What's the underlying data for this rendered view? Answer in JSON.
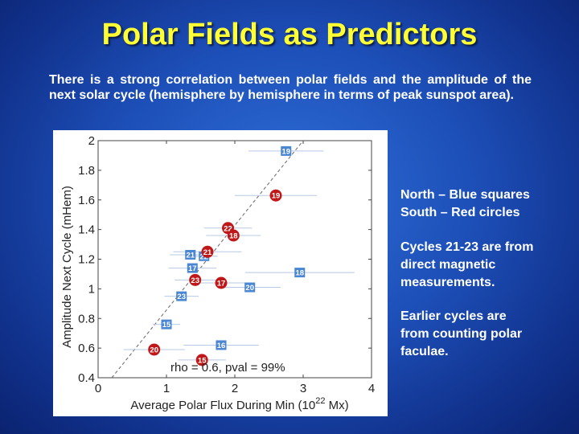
{
  "slide": {
    "title": "Polar Fields as Predictors",
    "intro": "There is a strong correlation between polar fields and the amplitude of the next solar cycle (hemisphere by hemisphere in terms of peak sunspot area).",
    "legend_lines": [
      "North – Blue squares",
      "South – Red circles"
    ],
    "note1_lines": [
      "Cycles 21-23 are from",
      "direct magnetic",
      "measurements."
    ],
    "note2_lines": [
      "Earlier cycles are",
      "from counting polar",
      "faculae."
    ]
  },
  "chart_data": {
    "type": "scatter",
    "xlabel": "Average Polar Flux During Min (10",
    "xlabel_exponent": "22",
    "xlabel_unit": " Mx)",
    "ylabel": "Amplitude Next Cycle (mHem)",
    "xlim": [
      0,
      4
    ],
    "ylim": [
      0.4,
      2.0
    ],
    "xticks": [
      "0",
      "1",
      "2",
      "3",
      "4"
    ],
    "yticks": [
      "0.4",
      "0.6",
      "0.8",
      "1",
      "1.2",
      "1.4",
      "1.6",
      "1.8",
      "2"
    ],
    "annotation": "rho = 0.6, pval = 99%",
    "fit_line": [
      [
        0.2,
        0.4
      ],
      [
        3.0,
        2.0
      ]
    ],
    "colors": {
      "north": "#4a86d2",
      "south": "#c01818",
      "errorbar": "#b8c8e4",
      "fit": "#666666"
    },
    "series": [
      {
        "name": "North – Blue squares",
        "marker": "square",
        "points": [
          {
            "label": "19",
            "x": 2.75,
            "y": 1.93,
            "xerr": 0.55
          },
          {
            "label": "21",
            "x": 1.35,
            "y": 1.23,
            "xerr": 0.3
          },
          {
            "label": "22",
            "x": 1.55,
            "y": 1.22,
            "xerr": 0.2
          },
          {
            "label": "17",
            "x": 1.38,
            "y": 1.14,
            "xerr": 0.35
          },
          {
            "label": "18",
            "x": 2.95,
            "y": 1.11,
            "xerr": 0.8
          },
          {
            "label": "20",
            "x": 2.22,
            "y": 1.01,
            "xerr": 0.45
          },
          {
            "label": "23",
            "x": 1.22,
            "y": 0.95,
            "xerr": 0.25
          },
          {
            "label": "15",
            "x": 1.0,
            "y": 0.76,
            "xerr": 0.2
          },
          {
            "label": "16",
            "x": 1.8,
            "y": 0.62,
            "xerr": 0.55
          }
        ]
      },
      {
        "name": "South – Red circles",
        "marker": "circle",
        "points": [
          {
            "label": "19",
            "x": 2.6,
            "y": 1.63,
            "xerr": 0.6
          },
          {
            "label": "22",
            "x": 1.9,
            "y": 1.41,
            "xerr": 0.35
          },
          {
            "label": "18",
            "x": 1.98,
            "y": 1.36,
            "xerr": 0.4
          },
          {
            "label": "21",
            "x": 1.6,
            "y": 1.25,
            "xerr": 0.5
          },
          {
            "label": "23",
            "x": 1.42,
            "y": 1.06,
            "xerr": 0.3
          },
          {
            "label": "17",
            "x": 1.8,
            "y": 1.04,
            "xerr": 0.45
          },
          {
            "label": "20",
            "x": 0.82,
            "y": 0.59,
            "xerr": 0.45
          },
          {
            "label": "15",
            "x": 1.52,
            "y": 0.52,
            "xerr": 0.35
          }
        ]
      }
    ]
  }
}
